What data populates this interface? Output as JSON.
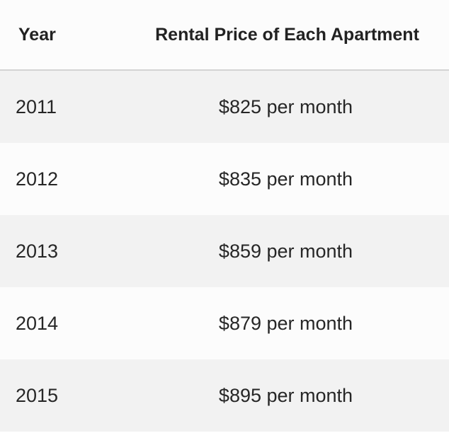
{
  "table": {
    "headers": {
      "year": "Year",
      "price": "Rental Price of Each Apartment"
    },
    "rows": [
      {
        "year": "2011",
        "price": "$825 per month"
      },
      {
        "year": "2012",
        "price": "$835 per month"
      },
      {
        "year": "2013",
        "price": "$859 per month"
      },
      {
        "year": "2014",
        "price": "$879 per month"
      },
      {
        "year": "2015",
        "price": "$895 per month"
      }
    ]
  },
  "colors": {
    "row_shaded": "#f2f2f2",
    "row_plain": "#fcfcfc",
    "header_border": "#d3d3d3",
    "text": "#222222"
  }
}
